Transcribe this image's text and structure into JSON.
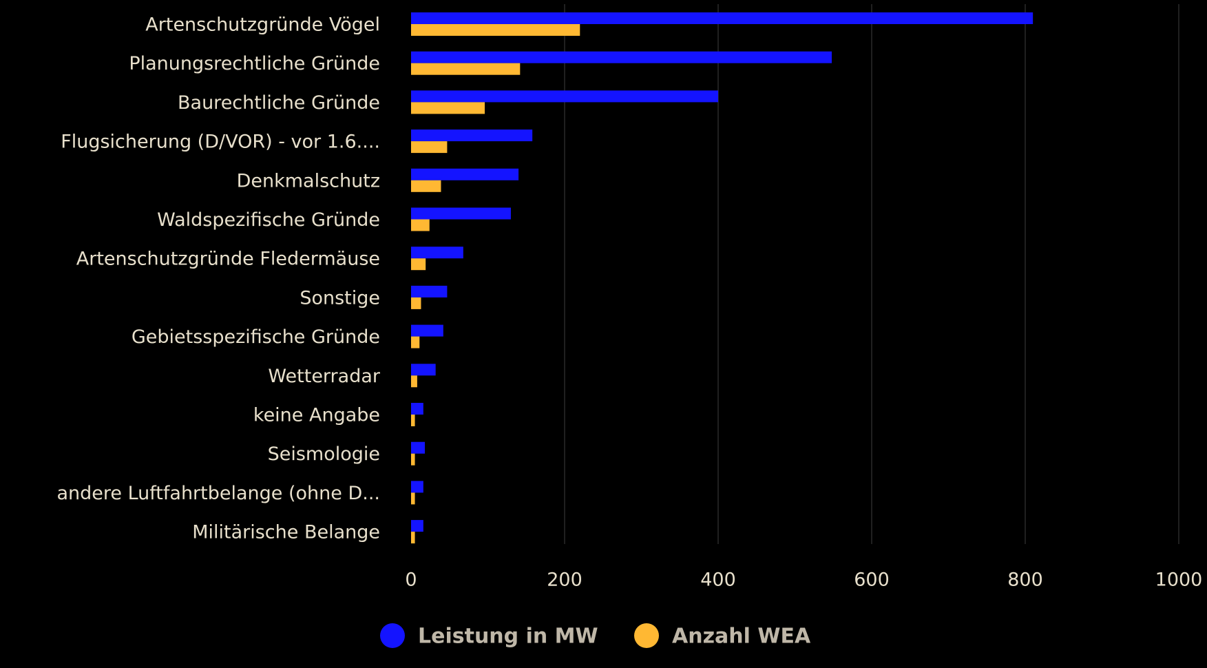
{
  "chart_data": {
    "type": "bar",
    "orientation": "horizontal",
    "categories": [
      "Artenschutzgründe Vögel",
      "Planungsrechtliche Gründe",
      "Baurechtliche Gründe",
      "Flugsicherung (D/VOR) - vor 1.6....",
      "Denkmalschutz",
      "Waldspezifische Gründe",
      "Artenschutzgründe Fledermäuse",
      "Sonstige",
      "Gebietsspezifische Gründe",
      "Wetterradar",
      "keine Angabe",
      "Seismologie",
      "andere Luftfahrtbelange (ohne D...",
      "Militärische Belange"
    ],
    "series": [
      {
        "name": "Leistung in MW",
        "color": "#1414ff",
        "values": [
          810,
          548,
          400,
          158,
          140,
          130,
          68,
          47,
          42,
          32,
          16,
          18,
          16,
          16
        ]
      },
      {
        "name": "Anzahl WEA",
        "color": "#ffb833",
        "values": [
          220,
          142,
          96,
          47,
          39,
          24,
          19,
          13,
          11,
          8,
          5,
          5,
          5,
          5
        ]
      }
    ],
    "title": "",
    "xlabel": "",
    "ylabel": "",
    "xlim": [
      0,
      1000
    ],
    "xticks": [
      0,
      200,
      400,
      600,
      800,
      1000
    ],
    "grid": true,
    "legend_position": "bottom-center"
  }
}
